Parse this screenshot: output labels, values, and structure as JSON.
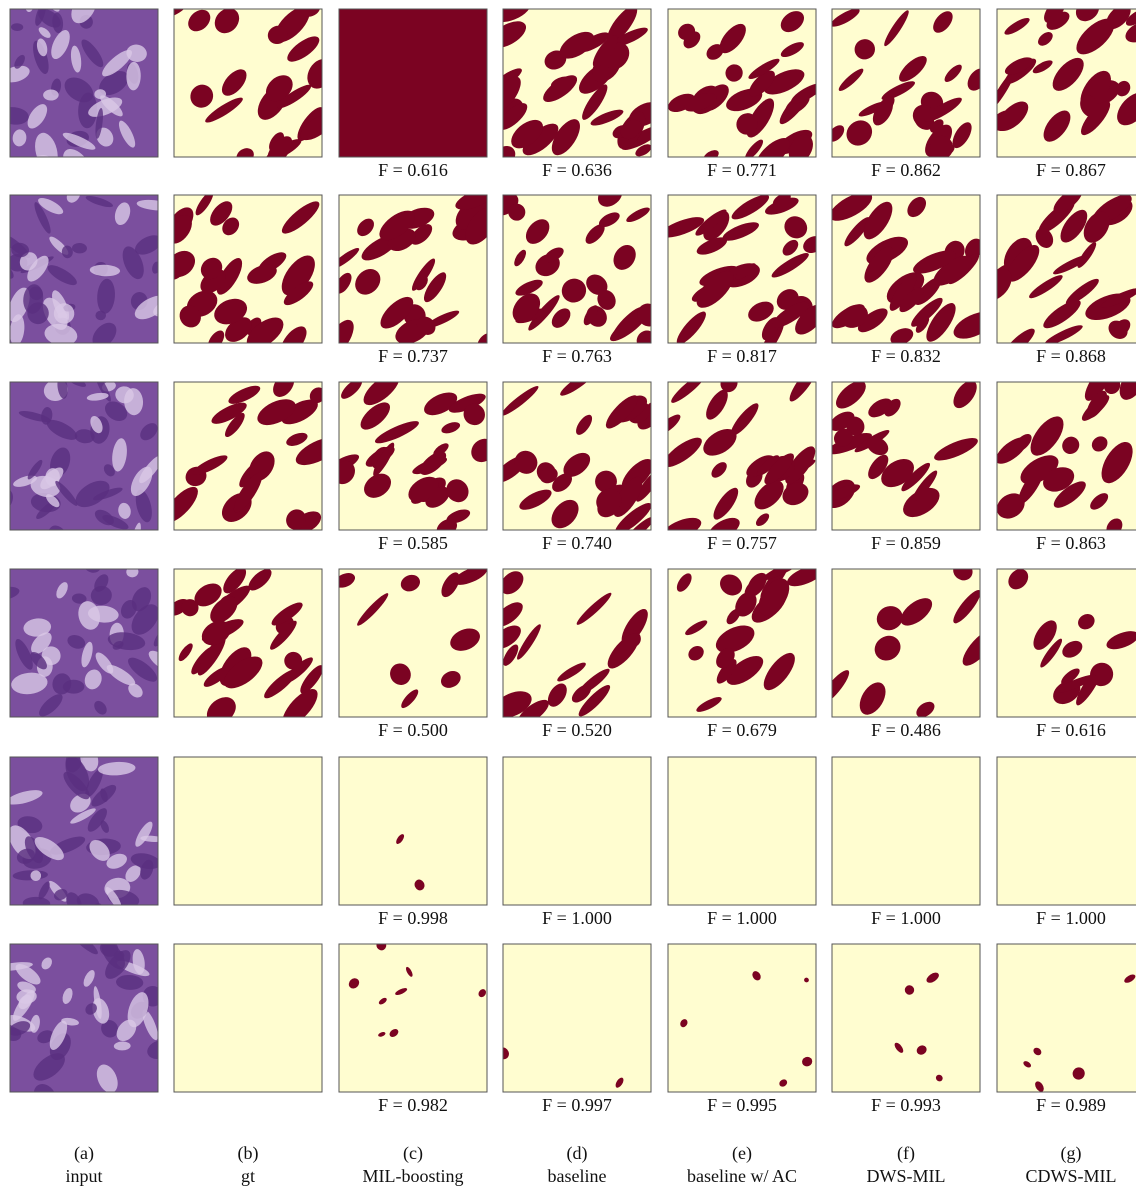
{
  "rows": [
    {
      "scores": [
        "F = 0.616",
        "F = 0.636",
        "F = 0.771",
        "F = 0.862",
        "F = 0.867"
      ]
    },
    {
      "scores": [
        "F = 0.737",
        "F = 0.763",
        "F = 0.817",
        "F = 0.832",
        "F = 0.868"
      ]
    },
    {
      "scores": [
        "F = 0.585",
        "F = 0.740",
        "F = 0.757",
        "F = 0.859",
        "F = 0.863"
      ]
    },
    {
      "scores": [
        "F = 0.500",
        "F = 0.520",
        "F = 0.679",
        "F = 0.486",
        "F = 0.616"
      ]
    },
    {
      "scores": [
        "F = 0.998",
        "F = 1.000",
        "F = 1.000",
        "F = 1.000",
        "F = 1.000"
      ]
    },
    {
      "scores": [
        "F = 0.982",
        "F = 0.997",
        "F = 0.995",
        "F = 0.993",
        "F = 0.989"
      ]
    }
  ],
  "columns": [
    {
      "letter": "(a)",
      "name": "input"
    },
    {
      "letter": "(b)",
      "name": "gt"
    },
    {
      "letter": "(c)",
      "name": "MIL-boosting"
    },
    {
      "letter": "(d)",
      "name": "baseline"
    },
    {
      "letter": "(e)",
      "name": "baseline w/ AC"
    },
    {
      "letter": "(f)",
      "name": "DWS-MIL"
    },
    {
      "letter": "(g)",
      "name": "CDWS-MIL"
    }
  ]
}
